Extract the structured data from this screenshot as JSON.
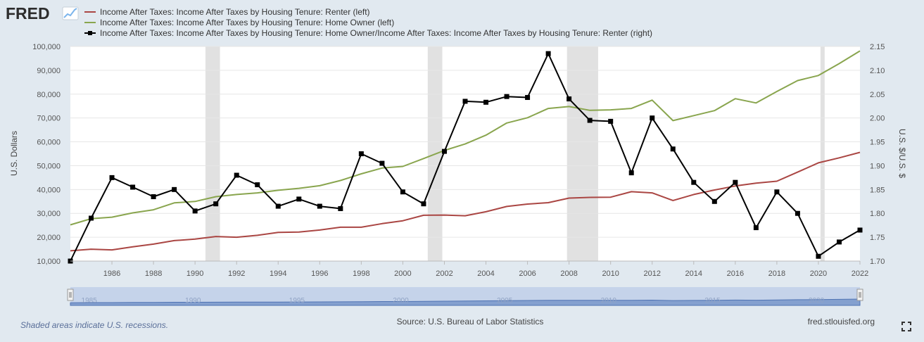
{
  "header": {
    "logo_text": "FRED",
    "logo_icon": "trend-line-icon"
  },
  "legend": [
    {
      "label": "Income After Taxes: Income After Taxes by Housing Tenure: Renter (left)",
      "color": "#aa4643"
    },
    {
      "label": "Income After Taxes: Income After Taxes by Housing Tenure: Home Owner (left)",
      "color": "#89a54e"
    },
    {
      "label": "Income After Taxes: Income After Taxes by Housing Tenure: Home Owner/Income After Taxes: Income After Taxes by Housing Tenure: Renter (right)",
      "color": "#000000"
    }
  ],
  "footer": {
    "recession_note": "Shaded areas indicate U.S. recessions.",
    "source": "Source: U.S. Bureau of Labor Statistics",
    "site": "fred.stlouisfed.org"
  },
  "navigator": {
    "labels": [
      "1985",
      "1990",
      "1995",
      "2000",
      "2005",
      "2010",
      "2015",
      "2020"
    ]
  },
  "chart_data": {
    "type": "line",
    "x": [
      1984,
      1985,
      1986,
      1987,
      1988,
      1989,
      1990,
      1991,
      1992,
      1993,
      1994,
      1995,
      1996,
      1997,
      1998,
      1999,
      2000,
      2001,
      2002,
      2003,
      2004,
      2005,
      2006,
      2007,
      2008,
      2009,
      2010,
      2011,
      2012,
      2013,
      2014,
      2015,
      2016,
      2017,
      2018,
      2019,
      2020,
      2021,
      2022
    ],
    "x_ticks": [
      1986,
      1988,
      1990,
      1992,
      1994,
      1996,
      1998,
      2000,
      2002,
      2004,
      2006,
      2008,
      2010,
      2012,
      2014,
      2016,
      2018,
      2020,
      2022
    ],
    "recessions": [
      [
        1990.5,
        1991.2
      ],
      [
        2001.2,
        2001.9
      ],
      [
        2007.9,
        2009.4
      ],
      [
        2020.1,
        2020.3
      ]
    ],
    "y_left": {
      "label": "U.S. Dollars",
      "range": [
        10000,
        100000
      ],
      "ticks": [
        "10,000",
        "20,000",
        "30,000",
        "40,000",
        "50,000",
        "60,000",
        "70,000",
        "80,000",
        "90,000",
        "100,000"
      ]
    },
    "y_right": {
      "label": "U.S. $/U.S. $",
      "range": [
        1.7,
        2.15
      ],
      "ticks": [
        "1.70",
        "1.75",
        "1.80",
        "1.85",
        "1.90",
        "1.95",
        "2.00",
        "2.05",
        "2.10",
        "2.15"
      ]
    },
    "series": [
      {
        "name": "Income After Taxes: Income After Taxes by Housing Tenure: Renter (left)",
        "axis": "left",
        "color": "#aa4643",
        "markers": false,
        "values": [
          14300,
          15000,
          14700,
          16000,
          17100,
          18600,
          19200,
          20300,
          20000,
          20800,
          22000,
          22200,
          23000,
          24200,
          24200,
          25700,
          26900,
          29200,
          29300,
          29000,
          30700,
          32900,
          33900,
          34500,
          36400,
          36700,
          36800,
          39100,
          38600,
          35400,
          37900,
          39800,
          41500,
          42700,
          43500,
          47300,
          51200,
          53300,
          55600
        ]
      },
      {
        "name": "Income After Taxes: Income After Taxes by Housing Tenure: Home Owner (left)",
        "axis": "left",
        "color": "#89a54e",
        "markers": false,
        "values": [
          25200,
          27800,
          28400,
          30200,
          31500,
          34400,
          35000,
          37000,
          37900,
          38600,
          39700,
          40500,
          41600,
          43800,
          46600,
          49000,
          49700,
          53000,
          56400,
          59100,
          62800,
          67900,
          70100,
          74000,
          74800,
          73200,
          73400,
          74000,
          77500,
          68900,
          71000,
          73100,
          78100,
          76300,
          81100,
          85700,
          87800,
          92800,
          98100
        ]
      },
      {
        "name": "Income After Taxes: Income After Taxes by Housing Tenure: Home Owner/Income After Taxes: Income After Taxes by Housing Tenure: Renter (right)",
        "axis": "right",
        "color": "#000000",
        "markers": true,
        "values": [
          1.7,
          1.79,
          1.875,
          1.855,
          1.835,
          1.85,
          1.805,
          1.82,
          1.88,
          1.86,
          1.815,
          1.83,
          1.815,
          1.81,
          1.925,
          1.905,
          1.845,
          1.82,
          1.93,
          2.035,
          2.033,
          2.045,
          2.043,
          2.135,
          2.04,
          1.995,
          1.993,
          1.885,
          2.0,
          1.935,
          1.865,
          1.825,
          1.865,
          1.77,
          1.845,
          1.8,
          1.71,
          1.74,
          1.765
        ]
      }
    ]
  }
}
